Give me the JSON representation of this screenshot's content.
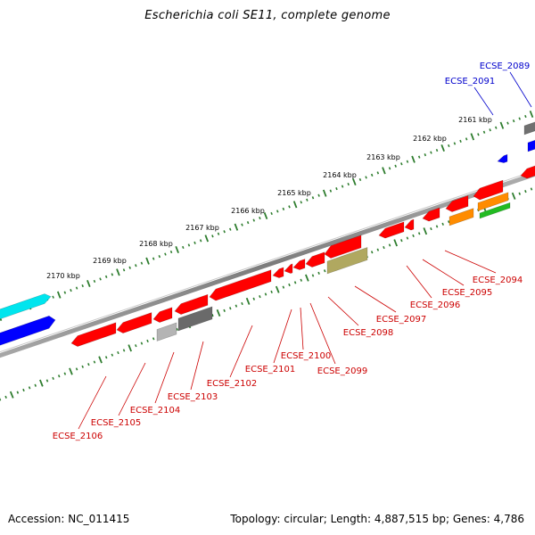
{
  "title": "Escherichia coli SE11, complete genome",
  "footer": {
    "accession": "Accession: NC_011415",
    "topology": "Topology: circular; Length: 4,887,515 bp; Genes: 4,786"
  },
  "colors": {
    "forward_label": "#0000cc",
    "reverse_label": "#cc0000",
    "backbone": "#8c8c8c",
    "tick": "#2e7d2e"
  },
  "scale": {
    "unit": "kbp",
    "labels": [
      "2161 kbp",
      "2162 kbp",
      "2163 kbp",
      "2164 kbp",
      "2165 kbp",
      "2166 kbp",
      "2167 kbp",
      "2168 kbp",
      "2169 kbp",
      "2170 kbp"
    ]
  },
  "forward_genes": [
    {
      "label": "ECSE_2089",
      "color": "#707070"
    },
    {
      "label": "ECSE_2091",
      "color": "#0000ff"
    }
  ],
  "reverse_genes": [
    {
      "label": "ECSE_2094",
      "color": "#ff0000"
    },
    {
      "label": "ECSE_2095",
      "color": "#ff0000"
    },
    {
      "label": "ECSE_2096",
      "color": "#ff0000"
    },
    {
      "label": "ECSE_2097",
      "color": "#ff0000"
    },
    {
      "label": "ECSE_2098",
      "color": "#ff0000"
    },
    {
      "label": "ECSE_2099",
      "color": "#ff0000"
    },
    {
      "label": "ECSE_2100",
      "color": "#ff0000"
    },
    {
      "label": "ECSE_2101",
      "color": "#ff0000"
    },
    {
      "label": "ECSE_2102",
      "color": "#ff0000"
    },
    {
      "label": "ECSE_2103",
      "color": "#ff0000"
    },
    {
      "label": "ECSE_2104",
      "color": "#ff0000"
    },
    {
      "label": "ECSE_2105",
      "color": "#ff0000"
    },
    {
      "label": "ECSE_2106",
      "color": "#ff0000"
    }
  ]
}
